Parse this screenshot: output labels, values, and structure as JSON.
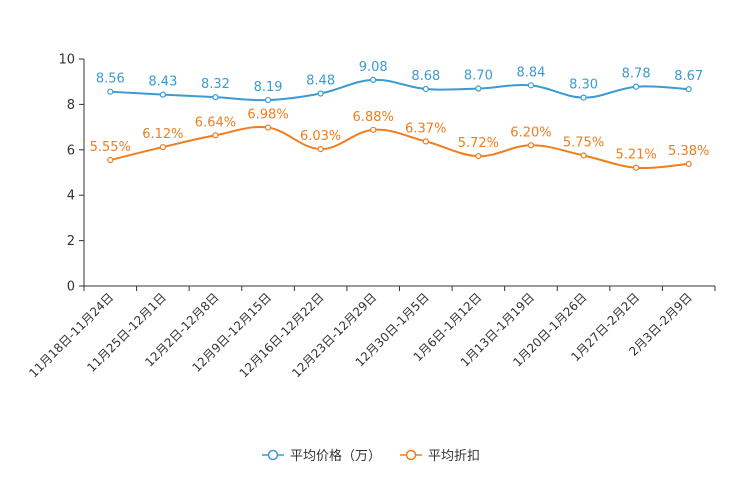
{
  "chart_data": {
    "type": "line",
    "title": "",
    "xlabel": "",
    "ylabel": "",
    "ylim": [
      0,
      10
    ],
    "yticks": [
      0,
      2,
      4,
      6,
      8,
      10
    ],
    "grid": false,
    "legend_position": "bottom-center",
    "categories": [
      "11月18日-11月24日",
      "11月25日-12月1日",
      "12月2日-12月8日",
      "12月9日-12月15日",
      "12月16日-12月22日",
      "12月23日-12月29日",
      "12月30日-1月5日",
      "1月6日-1月12日",
      "1月13日-1月19日",
      "1月20日-1月26日",
      "1月27日-2月2日",
      "2月3日-2月9日"
    ],
    "series": [
      {
        "name": "平均价格（万）",
        "color": "#3c9bd1",
        "values": [
          8.56,
          8.43,
          8.32,
          8.19,
          8.48,
          9.08,
          8.68,
          8.7,
          8.84,
          8.3,
          8.78,
          8.67
        ],
        "labels": [
          "8.56",
          "8.43",
          "8.32",
          "8.19",
          "8.48",
          "9.08",
          "8.68",
          "8.70",
          "8.84",
          "8.30",
          "8.78",
          "8.67"
        ]
      },
      {
        "name": "平均折扣",
        "color": "#f07d1e",
        "values": [
          5.55,
          6.12,
          6.64,
          6.98,
          6.03,
          6.88,
          6.37,
          5.72,
          6.2,
          5.75,
          5.21,
          5.38
        ],
        "labels": [
          "5.55%",
          "6.12%",
          "6.64%",
          "6.98%",
          "6.03%",
          "6.88%",
          "6.37%",
          "5.72%",
          "6.20%",
          "5.75%",
          "5.21%",
          "5.38%"
        ]
      }
    ]
  }
}
